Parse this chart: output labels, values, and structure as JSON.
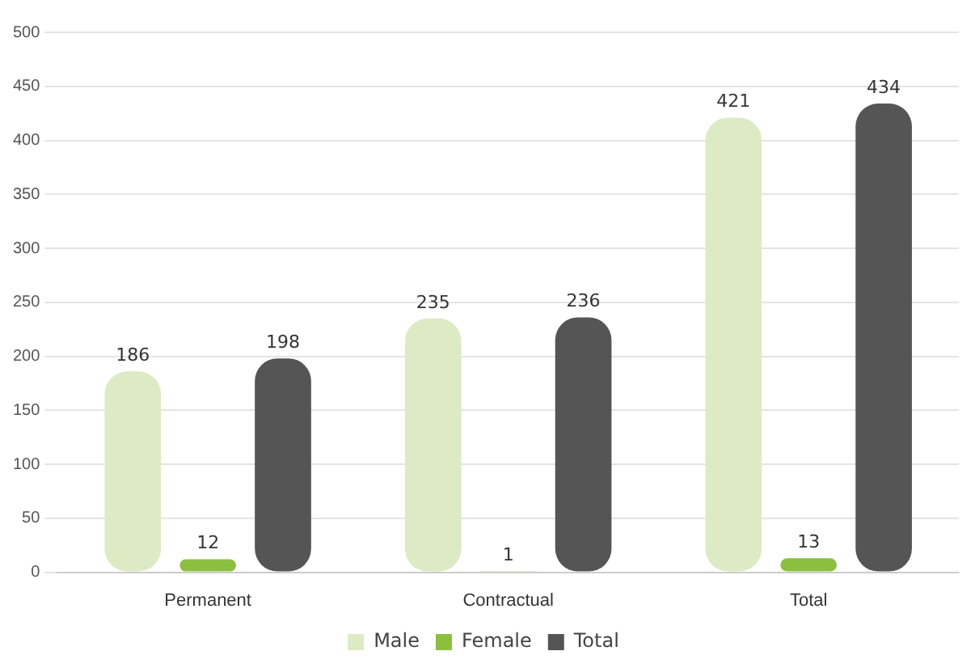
{
  "chart_data": {
    "type": "bar",
    "categories": [
      "Permanent",
      "Contractual",
      "Total"
    ],
    "series": [
      {
        "name": "Male",
        "color": "#dcebc4",
        "values": [
          186,
          235,
          421
        ]
      },
      {
        "name": "Female",
        "color": "#8cbf3f",
        "values": [
          12,
          1,
          13
        ]
      },
      {
        "name": "Total",
        "color": "#555555",
        "values": [
          198,
          236,
          434
        ]
      }
    ],
    "ylim": [
      0,
      500
    ],
    "yticks": [
      0,
      50,
      100,
      150,
      200,
      250,
      300,
      350,
      400,
      450,
      500
    ],
    "grid": "y",
    "legend": "bottom",
    "data_labels": true
  }
}
